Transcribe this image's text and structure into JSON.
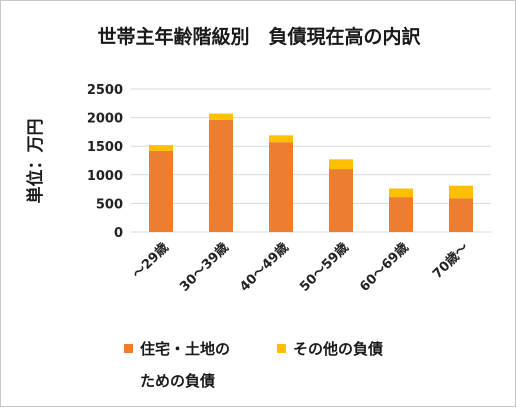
{
  "chart_data": {
    "type": "bar",
    "stacked": true,
    "title": "世帯主年齢階級別　負債現在高の内訳",
    "ylabel": "単位：万円",
    "xlabel": "",
    "categories": [
      "～29歳",
      "30～39歳",
      "40～49歳",
      "50～59歳",
      "60～69歳",
      "70歳～"
    ],
    "series": [
      {
        "name": "住宅・土地のための負債",
        "name_lines": [
          "住宅・土地の",
          "ための負債"
        ],
        "color": "#ED7D31",
        "values": [
          1420,
          1960,
          1570,
          1100,
          610,
          590
        ]
      },
      {
        "name": "その他の負債",
        "name_lines": [
          "その他の負債"
        ],
        "color": "#FFC000",
        "values": [
          100,
          110,
          120,
          170,
          150,
          220
        ]
      }
    ],
    "ylim": [
      0,
      2500
    ],
    "yticks": [
      0,
      500,
      1000,
      1500,
      2000,
      2500
    ],
    "grid": true,
    "legend_position": "bottom"
  }
}
